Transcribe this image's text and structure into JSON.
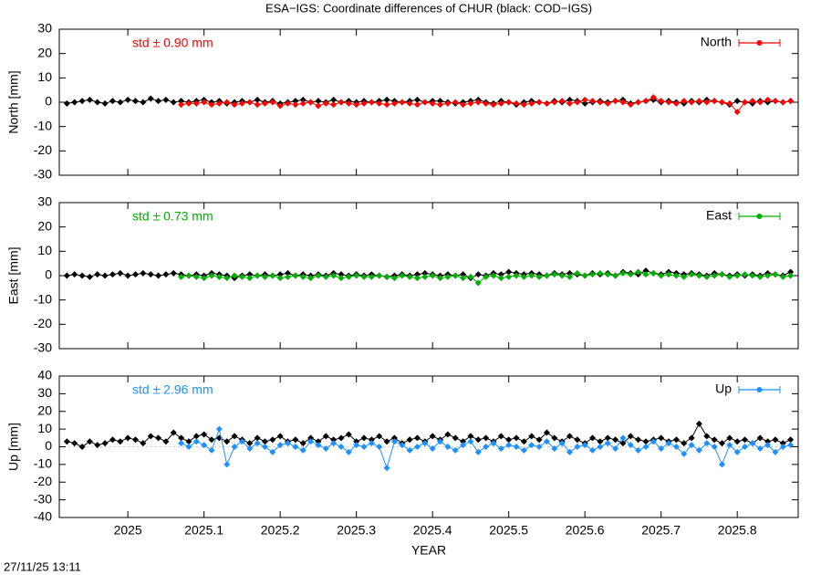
{
  "title": "ESA−IGS: Coordinate differences of CHUR (black: COD−IGS)",
  "footer": "27/11/25 13:11",
  "chart_data": [
    {
      "type": "line",
      "ylabel": "North [mm]",
      "annotation": "std ± 0.90 mm",
      "legend": "upper right",
      "xlim": [
        2024.91,
        2025.88
      ],
      "xticks": [
        2025,
        2025.1,
        2025.2,
        2025.3,
        2025.4,
        2025.5,
        2025.6,
        2025.7,
        2025.8
      ],
      "ylim": [
        -30,
        30
      ],
      "yticks": [
        -30,
        -20,
        -10,
        0,
        10,
        20,
        30
      ],
      "x": [
        2024.92,
        2024.93,
        2024.94,
        2024.95,
        2024.96,
        2024.97,
        2024.98,
        2024.99,
        2025.0,
        2025.01,
        2025.02,
        2025.03,
        2025.04,
        2025.05,
        2025.06,
        2025.07,
        2025.08,
        2025.09,
        2025.1,
        2025.11,
        2025.12,
        2025.13,
        2025.14,
        2025.15,
        2025.16,
        2025.17,
        2025.18,
        2025.19,
        2025.2,
        2025.21,
        2025.22,
        2025.23,
        2025.24,
        2025.25,
        2025.26,
        2025.27,
        2025.28,
        2025.29,
        2025.3,
        2025.31,
        2025.32,
        2025.33,
        2025.34,
        2025.35,
        2025.36,
        2025.37,
        2025.38,
        2025.39,
        2025.4,
        2025.41,
        2025.42,
        2025.43,
        2025.44,
        2025.45,
        2025.46,
        2025.47,
        2025.48,
        2025.49,
        2025.5,
        2025.51,
        2025.52,
        2025.53,
        2025.54,
        2025.55,
        2025.56,
        2025.57,
        2025.58,
        2025.59,
        2025.6,
        2025.61,
        2025.62,
        2025.63,
        2025.64,
        2025.65,
        2025.66,
        2025.67,
        2025.68,
        2025.69,
        2025.7,
        2025.71,
        2025.72,
        2025.73,
        2025.74,
        2025.75,
        2025.76,
        2025.77,
        2025.78,
        2025.79,
        2025.8,
        2025.81,
        2025.82,
        2025.83,
        2025.84,
        2025.85,
        2025.86,
        2025.87
      ],
      "series": [
        {
          "color": "#000000",
          "values": [
            -0.5,
            0,
            0.5,
            1,
            0,
            -0.5,
            0.5,
            0,
            1,
            0.5,
            0,
            1.5,
            0.5,
            1,
            0,
            0.5,
            0,
            0.5,
            1,
            0,
            0.5,
            -0.5,
            0,
            0.5,
            0,
            1,
            0,
            0.5,
            -0.5,
            0,
            0.5,
            1,
            0,
            0.5,
            0,
            1,
            0,
            0.5,
            0,
            0.5,
            0,
            0.5,
            1,
            0.5,
            0,
            0.5,
            1,
            0,
            0.5,
            0.5,
            0,
            -0.5,
            0,
            0.5,
            1,
            0,
            -0.5,
            0.5,
            0,
            -1,
            0,
            0.5,
            0,
            -0.5,
            0.5,
            0,
            1,
            0.5,
            -0.5,
            0,
            0.5,
            0,
            0.5,
            1,
            -0.5,
            0,
            0.5,
            1,
            0,
            0.5,
            0,
            -0.5,
            0.5,
            0,
            1,
            0.5,
            0,
            -1,
            0.5,
            0,
            -0.5,
            0.5,
            0,
            0.5,
            0,
            0.5
          ]
        },
        {
          "name": "North",
          "color": "#ff0000",
          "values": [
            null,
            null,
            null,
            null,
            null,
            null,
            null,
            null,
            null,
            null,
            null,
            null,
            null,
            null,
            null,
            -1,
            -0.5,
            -0.5,
            0,
            -1,
            -0.5,
            0,
            -1,
            -0.5,
            0,
            -1,
            -0.5,
            0,
            -1.5,
            -0.5,
            -1,
            -0.5,
            0,
            -1.5,
            -0.5,
            -1,
            0,
            -0.5,
            -1,
            -0.5,
            0,
            -0.5,
            -1,
            -0.5,
            0,
            -0.5,
            -1,
            0,
            -0.5,
            -1,
            -0.5,
            0,
            -1,
            -0.5,
            0,
            -0.5,
            -1,
            -0.5,
            0,
            -0.5,
            -1,
            -0.5,
            0,
            -0.5,
            0,
            0.5,
            -0.5,
            0,
            1,
            0.5,
            0,
            -0.5,
            0.5,
            0,
            -1,
            0,
            0.5,
            2,
            0.5,
            0,
            -0.5,
            0.5,
            0,
            0.5,
            0,
            0.5,
            0,
            -0.5,
            -4,
            0,
            0.5,
            0,
            1,
            0.5,
            0,
            0.5
          ]
        }
      ]
    },
    {
      "type": "line",
      "ylabel": "East [mm]",
      "annotation": "std ± 0.73 mm",
      "legend": "upper right",
      "xlim": [
        2024.91,
        2025.88
      ],
      "xticks": [
        2025,
        2025.1,
        2025.2,
        2025.3,
        2025.4,
        2025.5,
        2025.6,
        2025.7,
        2025.8
      ],
      "ylim": [
        -30,
        30
      ],
      "yticks": [
        -30,
        -20,
        -10,
        0,
        10,
        20,
        30
      ],
      "x": [
        2024.92,
        2024.93,
        2024.94,
        2024.95,
        2024.96,
        2024.97,
        2024.98,
        2024.99,
        2025.0,
        2025.01,
        2025.02,
        2025.03,
        2025.04,
        2025.05,
        2025.06,
        2025.07,
        2025.08,
        2025.09,
        2025.1,
        2025.11,
        2025.12,
        2025.13,
        2025.14,
        2025.15,
        2025.16,
        2025.17,
        2025.18,
        2025.19,
        2025.2,
        2025.21,
        2025.22,
        2025.23,
        2025.24,
        2025.25,
        2025.26,
        2025.27,
        2025.28,
        2025.29,
        2025.3,
        2025.31,
        2025.32,
        2025.33,
        2025.34,
        2025.35,
        2025.36,
        2025.37,
        2025.38,
        2025.39,
        2025.4,
        2025.41,
        2025.42,
        2025.43,
        2025.44,
        2025.45,
        2025.46,
        2025.47,
        2025.48,
        2025.49,
        2025.5,
        2025.51,
        2025.52,
        2025.53,
        2025.54,
        2025.55,
        2025.56,
        2025.57,
        2025.58,
        2025.59,
        2025.6,
        2025.61,
        2025.62,
        2025.63,
        2025.64,
        2025.65,
        2025.66,
        2025.67,
        2025.68,
        2025.69,
        2025.7,
        2025.71,
        2025.72,
        2025.73,
        2025.74,
        2025.75,
        2025.76,
        2025.77,
        2025.78,
        2025.79,
        2025.8,
        2025.81,
        2025.82,
        2025.83,
        2025.84,
        2025.85,
        2025.86,
        2025.87
      ],
      "series": [
        {
          "color": "#000000",
          "values": [
            0,
            0.5,
            0,
            -0.5,
            0.5,
            0,
            0.5,
            1,
            0,
            0.5,
            1,
            0.5,
            0,
            0.5,
            1,
            0.5,
            0,
            0.5,
            0,
            1,
            0.5,
            0,
            -1,
            0,
            0.5,
            0,
            0.5,
            0,
            0.5,
            1,
            0,
            0.5,
            0,
            0.5,
            0,
            1,
            0.5,
            0,
            0.5,
            0,
            0.5,
            0,
            -0.5,
            0,
            0.5,
            0,
            0.5,
            1,
            0.5,
            0,
            0.5,
            0,
            0.5,
            -1,
            0.5,
            0,
            1,
            0.5,
            1.5,
            1,
            0.5,
            1,
            0.5,
            0,
            1,
            0.5,
            1,
            0.5,
            0,
            1,
            0.5,
            1,
            0,
            1.5,
            1,
            0.5,
            2,
            1,
            0.5,
            1.5,
            1,
            0.5,
            1,
            0.5,
            0,
            1,
            0.5,
            0,
            0.5,
            0,
            0.5,
            0,
            1,
            0.5,
            0,
            1.5
          ]
        },
        {
          "name": "East",
          "color": "#00b000",
          "values": [
            null,
            null,
            null,
            null,
            null,
            null,
            null,
            null,
            null,
            null,
            null,
            null,
            null,
            null,
            null,
            -0.5,
            0,
            -0.5,
            -1,
            0,
            -0.5,
            -1,
            0,
            -0.5,
            -1,
            0,
            -0.5,
            0,
            -1,
            -0.5,
            0,
            -0.5,
            -1,
            0,
            -0.5,
            0,
            -1,
            -0.5,
            0,
            -0.5,
            -0.5,
            0,
            -0.5,
            -1,
            0,
            -0.5,
            -1,
            -0.5,
            0,
            -1,
            -0.5,
            0,
            -1,
            -0.5,
            -3,
            -0.5,
            0,
            -1,
            -0.5,
            0,
            -0.5,
            0,
            -0.5,
            0,
            0.5,
            0,
            -0.5,
            1,
            0,
            0.5,
            1,
            0.5,
            0,
            1,
            0.5,
            1.5,
            0.5,
            1,
            0,
            0.5,
            0,
            -0.5,
            0.5,
            0,
            -0.5,
            0,
            0.5,
            -0.5,
            0,
            0.5,
            0,
            -0.5,
            0,
            0.5,
            -0.5,
            0
          ]
        }
      ]
    },
    {
      "type": "line",
      "ylabel": "Up [mm]",
      "xlabel": "YEAR",
      "annotation": "std ± 2.96 mm",
      "legend": "upper right",
      "xlim": [
        2024.91,
        2025.88
      ],
      "xticks": [
        2025,
        2025.1,
        2025.2,
        2025.3,
        2025.4,
        2025.5,
        2025.6,
        2025.7,
        2025.8
      ],
      "ylim": [
        -40,
        40
      ],
      "yticks": [
        -40,
        -30,
        -20,
        -10,
        0,
        10,
        20,
        30,
        40
      ],
      "x": [
        2024.92,
        2024.93,
        2024.94,
        2024.95,
        2024.96,
        2024.97,
        2024.98,
        2024.99,
        2025.0,
        2025.01,
        2025.02,
        2025.03,
        2025.04,
        2025.05,
        2025.06,
        2025.07,
        2025.08,
        2025.09,
        2025.1,
        2025.11,
        2025.12,
        2025.13,
        2025.14,
        2025.15,
        2025.16,
        2025.17,
        2025.18,
        2025.19,
        2025.2,
        2025.21,
        2025.22,
        2025.23,
        2025.24,
        2025.25,
        2025.26,
        2025.27,
        2025.28,
        2025.29,
        2025.3,
        2025.31,
        2025.32,
        2025.33,
        2025.34,
        2025.35,
        2025.36,
        2025.37,
        2025.38,
        2025.39,
        2025.4,
        2025.41,
        2025.42,
        2025.43,
        2025.44,
        2025.45,
        2025.46,
        2025.47,
        2025.48,
        2025.49,
        2025.5,
        2025.51,
        2025.52,
        2025.53,
        2025.54,
        2025.55,
        2025.56,
        2025.57,
        2025.58,
        2025.59,
        2025.6,
        2025.61,
        2025.62,
        2025.63,
        2025.64,
        2025.65,
        2025.66,
        2025.67,
        2025.68,
        2025.69,
        2025.7,
        2025.71,
        2025.72,
        2025.73,
        2025.74,
        2025.75,
        2025.76,
        2025.77,
        2025.78,
        2025.79,
        2025.8,
        2025.81,
        2025.82,
        2025.83,
        2025.84,
        2025.85,
        2025.86,
        2025.87
      ],
      "series": [
        {
          "color": "#000000",
          "values": [
            3,
            2,
            0,
            3,
            1,
            2,
            4,
            3,
            5,
            4,
            2,
            6,
            5,
            3,
            8,
            5,
            3,
            6,
            7,
            4,
            5,
            3,
            6,
            4,
            2,
            5,
            3,
            4,
            6,
            3,
            4,
            2,
            5,
            3,
            6,
            4,
            5,
            7,
            3,
            5,
            4,
            6,
            3,
            5,
            2,
            4,
            5,
            3,
            6,
            4,
            7,
            5,
            3,
            6,
            4,
            5,
            3,
            6,
            4,
            5,
            3,
            6,
            4,
            8,
            5,
            3,
            6,
            4,
            2,
            5,
            3,
            5,
            4,
            2,
            6,
            4,
            3,
            4,
            5,
            3,
            4,
            2,
            5,
            13,
            6,
            4,
            2,
            5,
            3,
            4,
            2,
            5,
            3,
            4,
            2,
            4
          ]
        },
        {
          "name": "Up",
          "color": "#1e90ff",
          "values": [
            null,
            null,
            null,
            null,
            null,
            null,
            null,
            null,
            null,
            null,
            null,
            null,
            null,
            null,
            null,
            2,
            0,
            3,
            1,
            -2,
            10,
            -10,
            0,
            3,
            -1,
            2,
            0,
            -3,
            1,
            2,
            0,
            -2,
            3,
            1,
            -1,
            2,
            0,
            -3,
            1,
            0,
            2,
            0,
            -12,
            3,
            1,
            -2,
            0,
            2,
            -1,
            3,
            0,
            -2,
            1,
            3,
            -3,
            0,
            2,
            -1,
            1,
            0,
            -2,
            1,
            0,
            3,
            -1,
            2,
            -3,
            0,
            1,
            -2,
            0,
            2,
            -1,
            5,
            1,
            -2,
            0,
            3,
            -1,
            2,
            0,
            -4,
            1,
            -2,
            2,
            0,
            -10,
            1,
            -3,
            0,
            2,
            -1,
            1,
            -3,
            0,
            1
          ]
        }
      ]
    }
  ]
}
